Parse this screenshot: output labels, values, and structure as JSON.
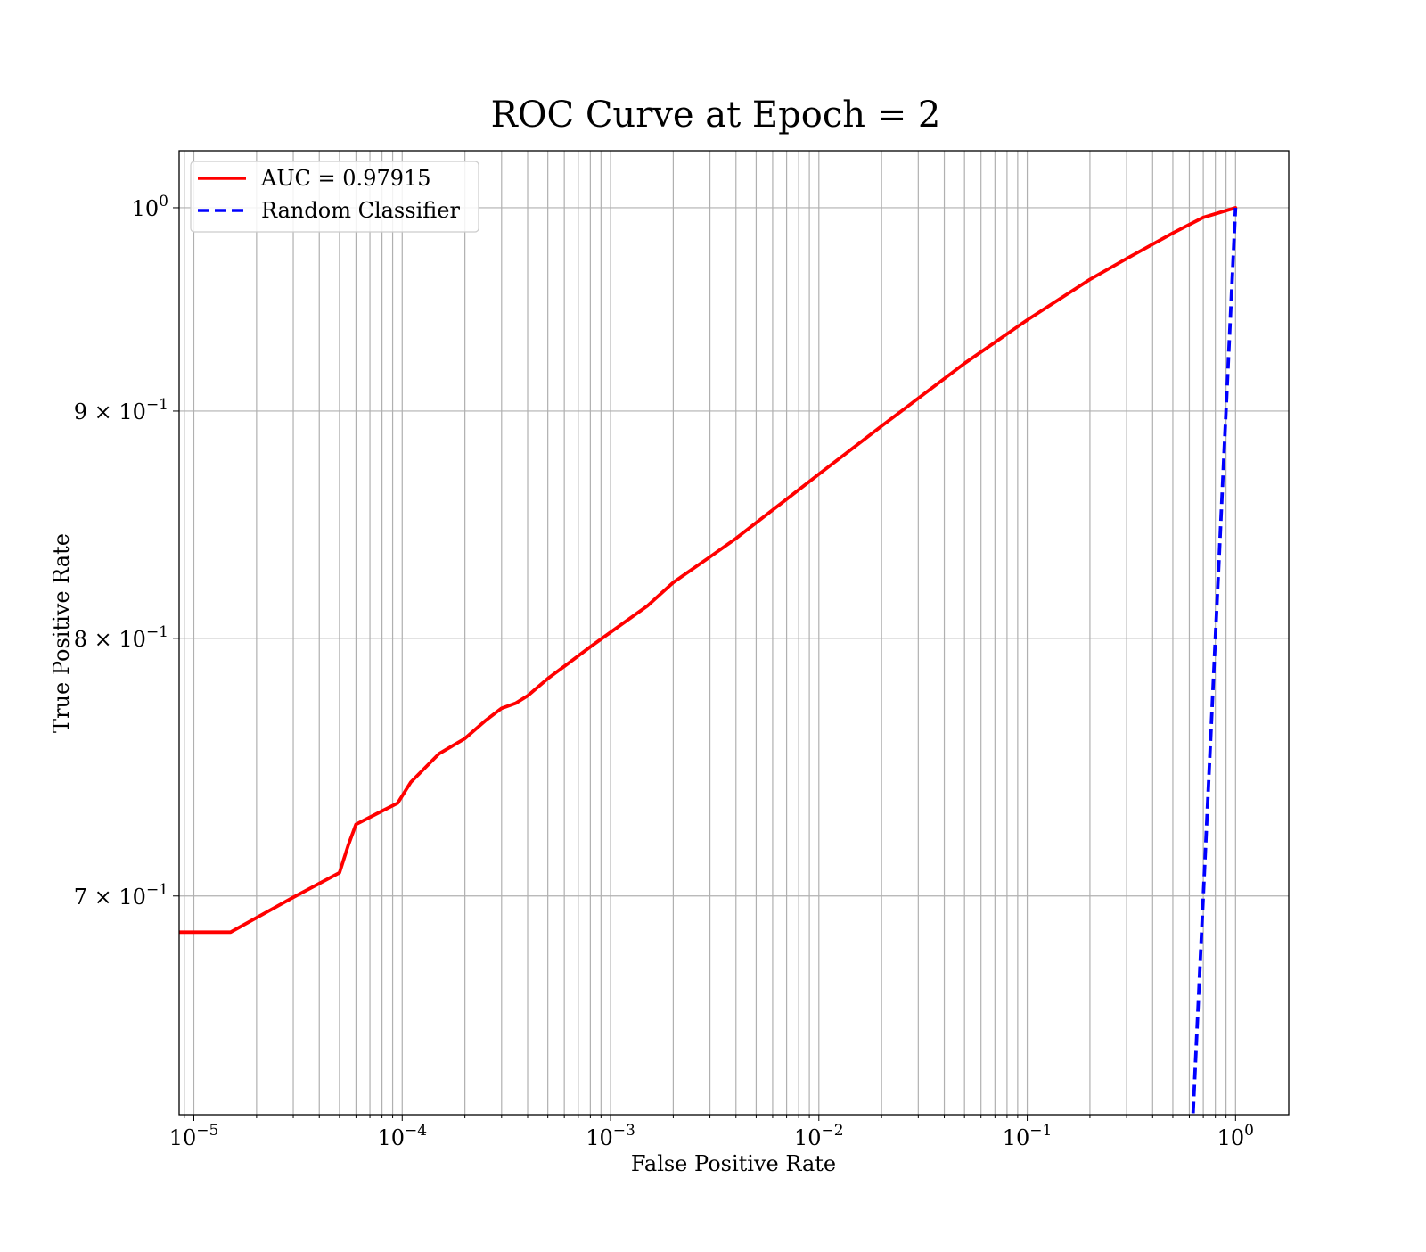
{
  "chart_data": {
    "type": "line",
    "title": "ROC Curve at Epoch = 2",
    "xlabel": "False Positive Rate",
    "ylabel": "True Positive Rate",
    "xscale": "log",
    "yscale": "log",
    "xlim": [
      8.5e-06,
      1.8
    ],
    "ylim": [
      0.625,
      1.03
    ],
    "grid": true,
    "legend_position": "top-left",
    "x_ticks": [
      {
        "value": 1e-05,
        "base": "10",
        "exp": "−5"
      },
      {
        "value": 0.0001,
        "base": "10",
        "exp": "−4"
      },
      {
        "value": 0.001,
        "base": "10",
        "exp": "−3"
      },
      {
        "value": 0.01,
        "base": "10",
        "exp": "−2"
      },
      {
        "value": 0.1,
        "base": "10",
        "exp": "−1"
      },
      {
        "value": 1,
        "base": "10",
        "exp": "0"
      }
    ],
    "y_ticks": [
      {
        "value": 1.0,
        "prefix": "",
        "base": "10",
        "exp": "0"
      },
      {
        "value": 0.9,
        "prefix": "9 × ",
        "base": "10",
        "exp": "−1"
      },
      {
        "value": 0.8,
        "prefix": "8 × ",
        "base": "10",
        "exp": "−1"
      },
      {
        "value": 0.7,
        "prefix": "7 × ",
        "base": "10",
        "exp": "−1"
      }
    ],
    "series": [
      {
        "name": "AUC = 0.97915",
        "color": "#ff0000",
        "style": "solid",
        "points": [
          [
            8.5e-06,
            0.687
          ],
          [
            1.5e-05,
            0.687
          ],
          [
            3e-05,
            0.6995
          ],
          [
            5e-05,
            0.7085
          ],
          [
            5.5e-05,
            0.7185
          ],
          [
            6e-05,
            0.7265
          ],
          [
            8e-05,
            0.7315
          ],
          [
            9.5e-05,
            0.7345
          ],
          [
            0.00011,
            0.7425
          ],
          [
            0.00015,
            0.7535
          ],
          [
            0.0002,
            0.7595
          ],
          [
            0.00025,
            0.7665
          ],
          [
            0.0003,
            0.7715
          ],
          [
            0.00035,
            0.7735
          ],
          [
            0.0004,
            0.7765
          ],
          [
            0.0005,
            0.7835
          ],
          [
            0.0006,
            0.7885
          ],
          [
            0.0008,
            0.7965
          ],
          [
            0.001,
            0.8025
          ],
          [
            0.0015,
            0.8135
          ],
          [
            0.002,
            0.8235
          ],
          [
            0.003,
            0.8345
          ],
          [
            0.004,
            0.8425
          ],
          [
            0.006,
            0.855
          ],
          [
            0.01,
            0.871
          ],
          [
            0.02,
            0.893
          ],
          [
            0.05,
            0.9225
          ],
          [
            0.1,
            0.9435
          ],
          [
            0.2,
            0.9635
          ],
          [
            0.3,
            0.974
          ],
          [
            0.5,
            0.987
          ],
          [
            0.7,
            0.995
          ],
          [
            1.0,
            1.0
          ]
        ]
      },
      {
        "name": "Random Classifier",
        "color": "#0000ff",
        "style": "dashed",
        "points": [
          [
            0.62,
            0.62
          ],
          [
            1.0,
            1.0
          ]
        ]
      }
    ]
  }
}
